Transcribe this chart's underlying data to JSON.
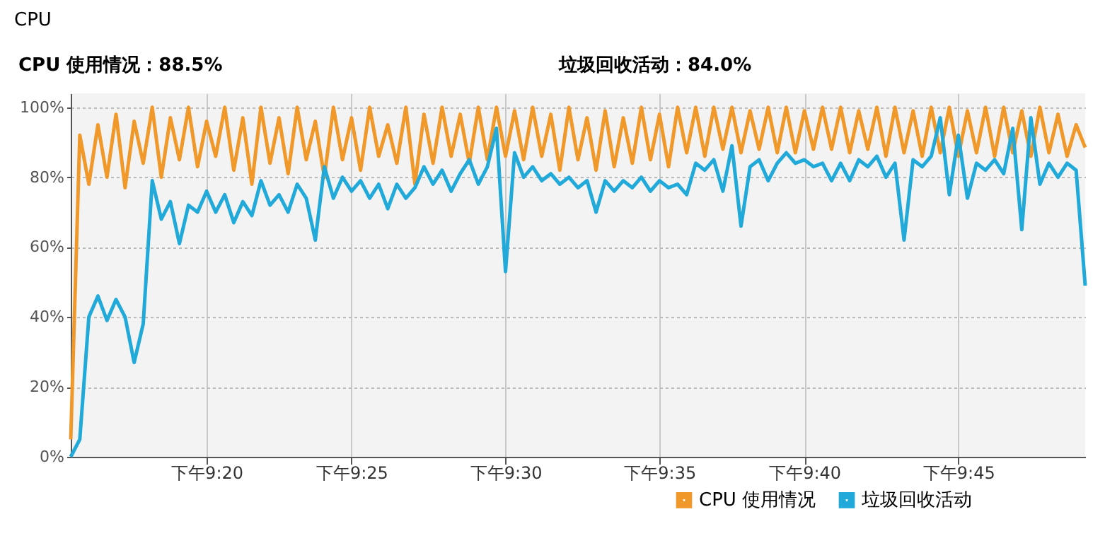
{
  "chart_data": {
    "type": "line",
    "title": "CPU",
    "annotations": [
      "CPU 使用情况：88.5%",
      "垃圾回收活动：84.0%"
    ],
    "categories": [
      null,
      null,
      null,
      null,
      null,
      null,
      null,
      null,
      null,
      null,
      null,
      null,
      null,
      null,
      null,
      "下午9:20",
      null,
      null,
      null,
      null,
      null,
      null,
      null,
      null,
      null,
      null,
      null,
      null,
      null,
      null,
      null,
      "下午9:25",
      null,
      null,
      null,
      null,
      null,
      null,
      null,
      null,
      null,
      null,
      null,
      null,
      null,
      null,
      null,
      null,
      "下午9:30",
      null,
      null,
      null,
      null,
      null,
      null,
      null,
      null,
      null,
      null,
      null,
      null,
      null,
      null,
      null,
      null,
      "下午9:35",
      null,
      null,
      null,
      null,
      null,
      null,
      null,
      null,
      null,
      null,
      null,
      null,
      null,
      null,
      null,
      "下午9:40",
      null,
      null,
      null,
      null,
      null,
      null,
      null,
      null,
      null,
      null,
      null,
      null,
      null,
      null,
      null,
      null,
      "下午9:45",
      null,
      null,
      null,
      null,
      null,
      null,
      null,
      null,
      null,
      null,
      null,
      null,
      null,
      null
    ],
    "series": [
      {
        "name": "CPU 使用情况",
        "color": "#f0992a",
        "values": [
          5,
          92,
          78,
          95,
          80,
          98,
          77,
          96,
          84,
          100,
          80,
          97,
          85,
          100,
          83,
          96,
          86,
          100,
          82,
          97,
          78,
          100,
          84,
          97,
          81,
          100,
          85,
          96,
          80,
          100,
          85,
          97,
          82,
          100,
          86,
          95,
          84,
          100,
          78,
          98,
          84,
          100,
          86,
          98,
          84,
          100,
          85,
          100,
          86,
          99,
          85,
          100,
          86,
          98,
          82,
          100,
          85,
          97,
          82,
          99,
          83,
          97,
          84,
          100,
          85,
          98,
          83,
          100,
          87,
          100,
          86,
          100,
          88,
          100,
          87,
          99,
          88,
          100,
          87,
          100,
          87,
          99,
          88,
          100,
          88,
          100,
          87,
          99,
          88,
          100,
          86,
          100,
          87,
          99,
          86,
          100,
          87,
          100,
          86,
          99,
          87,
          100,
          86,
          100,
          87,
          99,
          86,
          100,
          87,
          98,
          86,
          95,
          88.5
        ]
      },
      {
        "name": "垃圾回收活动",
        "color": "#21aad9",
        "values": [
          0,
          5,
          40,
          46,
          39,
          45,
          40,
          27,
          38,
          79,
          68,
          73,
          61,
          72,
          70,
          76,
          70,
          75,
          67,
          73,
          69,
          79,
          72,
          75,
          70,
          78,
          74,
          62,
          83,
          74,
          80,
          76,
          79,
          74,
          78,
          71,
          78,
          74,
          77,
          83,
          78,
          82,
          76,
          81,
          85,
          78,
          83,
          94,
          53,
          87,
          80,
          83,
          79,
          81,
          78,
          80,
          77,
          79,
          70,
          79,
          76,
          79,
          77,
          80,
          76,
          79,
          77,
          78,
          75,
          84,
          82,
          85,
          76,
          89,
          66,
          83,
          85,
          79,
          84,
          87,
          84,
          85,
          83,
          84,
          79,
          84,
          79,
          85,
          83,
          86,
          80,
          84,
          62,
          85,
          83,
          86,
          97,
          75,
          92,
          74,
          84,
          82,
          85,
          81,
          94,
          65,
          97,
          78,
          84,
          80,
          84,
          82,
          49
        ]
      }
    ],
    "ylim": [
      0,
      104
    ],
    "yticks": [
      {
        "value": 0,
        "label": "0%"
      },
      {
        "value": 20,
        "label": "20%"
      },
      {
        "value": 40,
        "label": "40%"
      },
      {
        "value": 60,
        "label": "60%"
      },
      {
        "value": 80,
        "label": "80%"
      },
      {
        "value": 100,
        "label": "100%"
      }
    ],
    "grid": true,
    "legend": "bottom right",
    "marker": "none",
    "line_style": "solid"
  }
}
